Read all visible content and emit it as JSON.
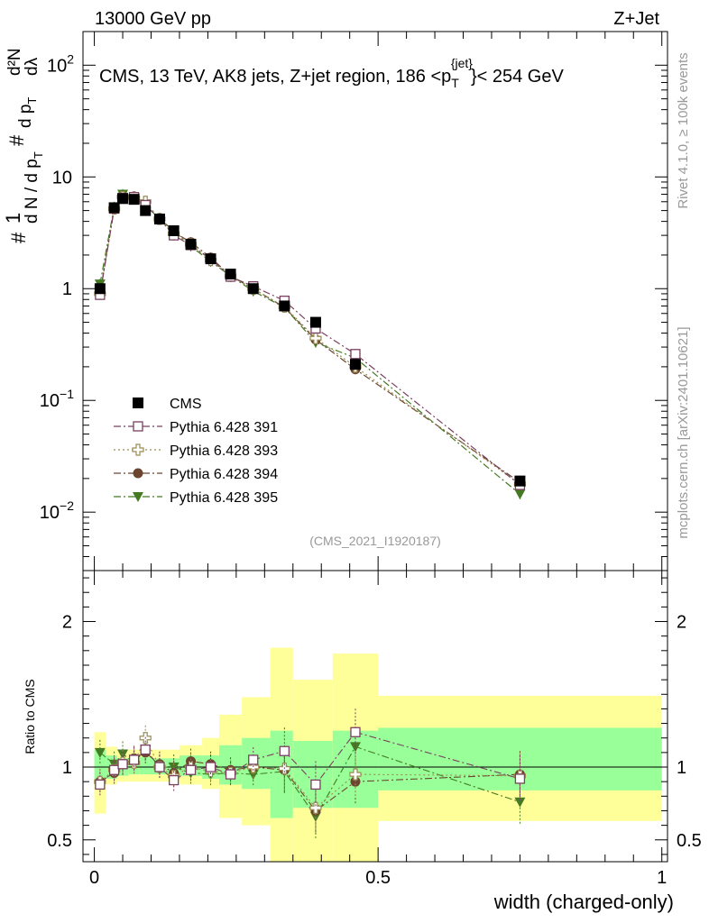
{
  "header": {
    "left": "13000 GeV pp",
    "right": "Z+Jet"
  },
  "side_labels": {
    "rivet": "Rivet 4.1.0, ≥ 100k events",
    "mcplots": "mcplots.cern.ch [arXiv:2401.10621]"
  },
  "chart_data": [
    {
      "type": "scatter",
      "title": "CMS, 13 TeV, AK8 jets, Z+jet region, 186 <p_T^{jet}< 254 GeV",
      "title_parts": {
        "main": "CMS, 13 TeV, AK8 jets, Z+jet region, 186 <p",
        "sub": "T",
        "sup": "{jet}",
        "tail": "}< 254 GeV"
      },
      "ylabel_parts": {
        "hash": "#",
        "one": "1",
        "den": "d N / d p",
        "sub": "T",
        "d2N": "d²N",
        "dpt": "d p",
        "dlambda": "dλ"
      },
      "yscale": "log",
      "ylim": [
        0.003,
        200
      ],
      "xlim": [
        -0.02,
        1.01
      ],
      "y_ticks": [
        {
          "value": 100,
          "label": "10",
          "exp": "2"
        },
        {
          "value": 10,
          "label": "10",
          "exp": ""
        },
        {
          "value": 1,
          "label": "1",
          "exp": ""
        },
        {
          "value": 0.1,
          "label": "10",
          "exp": "−1"
        },
        {
          "value": 0.01,
          "label": "10",
          "exp": "−2"
        }
      ],
      "watermark": "(CMS_2021_I1920187)",
      "legend_position": "lower-left",
      "x": [
        0.01,
        0.035,
        0.05,
        0.07,
        0.09,
        0.115,
        0.14,
        0.17,
        0.205,
        0.24,
        0.28,
        0.335,
        0.39,
        0.46,
        0.75
      ],
      "bin_edges": [
        0.0,
        0.02,
        0.04,
        0.06,
        0.08,
        0.1,
        0.125,
        0.15,
        0.19,
        0.22,
        0.26,
        0.31,
        0.35,
        0.42,
        0.5,
        1.0
      ],
      "series": [
        {
          "name": "CMS",
          "color": "#000000",
          "marker": "square-filled",
          "line": "none",
          "values": [
            1.0,
            5.3,
            6.4,
            6.3,
            5.0,
            4.2,
            3.3,
            2.5,
            1.85,
            1.35,
            1.0,
            0.7,
            0.5,
            0.21,
            0.019
          ]
        },
        {
          "name": "Pythia 6.428 391",
          "color": "#7a4060",
          "marker": "square-open",
          "line": "dashdot",
          "values": [
            0.88,
            5.2,
            6.5,
            6.6,
            5.6,
            4.2,
            3.0,
            2.45,
            1.85,
            1.28,
            1.05,
            0.78,
            0.44,
            0.26,
            0.0175
          ]
        },
        {
          "name": "Pythia 6.428 393",
          "color": "#9a8c50",
          "marker": "cross-open",
          "line": "dotted",
          "values": [
            0.9,
            5.2,
            6.6,
            6.5,
            6.0,
            4.2,
            3.1,
            2.5,
            1.8,
            1.3,
            1.0,
            0.69,
            0.36,
            0.2,
            0.0178
          ]
        },
        {
          "name": "Pythia 6.428 394",
          "color": "#6b4530",
          "marker": "circle-filled",
          "line": "dashdot",
          "values": [
            0.9,
            5.2,
            6.5,
            6.7,
            5.5,
            4.3,
            3.2,
            2.6,
            1.9,
            1.3,
            1.0,
            0.68,
            0.35,
            0.19,
            0.0185
          ]
        },
        {
          "name": "Pythia 6.428 395",
          "color": "#447a22",
          "marker": "triangle-down-filled",
          "line": "dashdot",
          "values": [
            1.1,
            5.4,
            7.0,
            6.5,
            5.6,
            4.2,
            3.3,
            2.4,
            1.75,
            1.3,
            0.95,
            0.68,
            0.33,
            0.24,
            0.0145
          ]
        }
      ]
    },
    {
      "type": "scatter",
      "ylabel": "Ratio to CMS",
      "xlabel": "width (charged-only)",
      "ylim": [
        0.35,
        2.35
      ],
      "xlim": [
        -0.02,
        1.01
      ],
      "y_ticks": [
        {
          "value": 2,
          "label": "2"
        },
        {
          "value": 1,
          "label": "1"
        },
        {
          "value": 0.5,
          "label": "0.5"
        }
      ],
      "x_ticks": [
        {
          "value": 0,
          "label": "0"
        },
        {
          "value": 0.5,
          "label": "0.5"
        },
        {
          "value": 1,
          "label": "1"
        }
      ],
      "band_green": [
        [
          0.88,
          1.12
        ],
        [
          0.92,
          1.08
        ],
        [
          0.94,
          1.06
        ],
        [
          0.95,
          1.06
        ],
        [
          0.95,
          1.07
        ],
        [
          0.95,
          1.06
        ],
        [
          0.95,
          1.06
        ],
        [
          0.94,
          1.08
        ],
        [
          0.92,
          1.08
        ],
        [
          0.88,
          1.15
        ],
        [
          0.85,
          1.2
        ],
        [
          0.65,
          1.25
        ],
        [
          0.72,
          1.18
        ],
        [
          0.72,
          1.25
        ],
        [
          0.84,
          1.27
        ]
      ],
      "band_yellow": [
        [
          0.68,
          1.24
        ],
        [
          0.88,
          1.14
        ],
        [
          0.9,
          1.12
        ],
        [
          0.9,
          1.12
        ],
        [
          0.9,
          1.13
        ],
        [
          0.9,
          1.12
        ],
        [
          0.9,
          1.12
        ],
        [
          0.88,
          1.15
        ],
        [
          0.85,
          1.2
        ],
        [
          0.65,
          1.36
        ],
        [
          0.6,
          1.48
        ],
        [
          0.35,
          1.82
        ],
        [
          0.35,
          1.6
        ],
        [
          0.35,
          1.78
        ],
        [
          0.63,
          1.49
        ]
      ],
      "ratio_series": [
        {
          "name": "Pythia 6.428 391",
          "values": [
            0.88,
            0.98,
            1.02,
            1.05,
            1.12,
            1.0,
            0.91,
            0.98,
            1.0,
            0.95,
            1.05,
            1.11,
            0.88,
            1.24,
            0.92
          ]
        },
        {
          "name": "Pythia 6.428 393",
          "values": [
            0.9,
            0.98,
            1.03,
            1.03,
            1.2,
            1.0,
            0.94,
            1.0,
            0.97,
            0.96,
            1.0,
            0.99,
            0.72,
            0.95,
            0.94
          ]
        },
        {
          "name": "Pythia 6.428 394",
          "values": [
            0.9,
            0.96,
            1.02,
            1.06,
            1.1,
            1.02,
            0.96,
            1.04,
            1.02,
            0.98,
            1.0,
            0.98,
            0.7,
            0.9,
            0.95
          ]
        },
        {
          "name": "Pythia 6.428 395",
          "values": [
            1.1,
            1.02,
            1.09,
            1.03,
            1.12,
            1.0,
            1.0,
            0.96,
            0.95,
            0.96,
            0.95,
            0.97,
            0.66,
            1.14,
            0.76
          ]
        }
      ]
    }
  ]
}
